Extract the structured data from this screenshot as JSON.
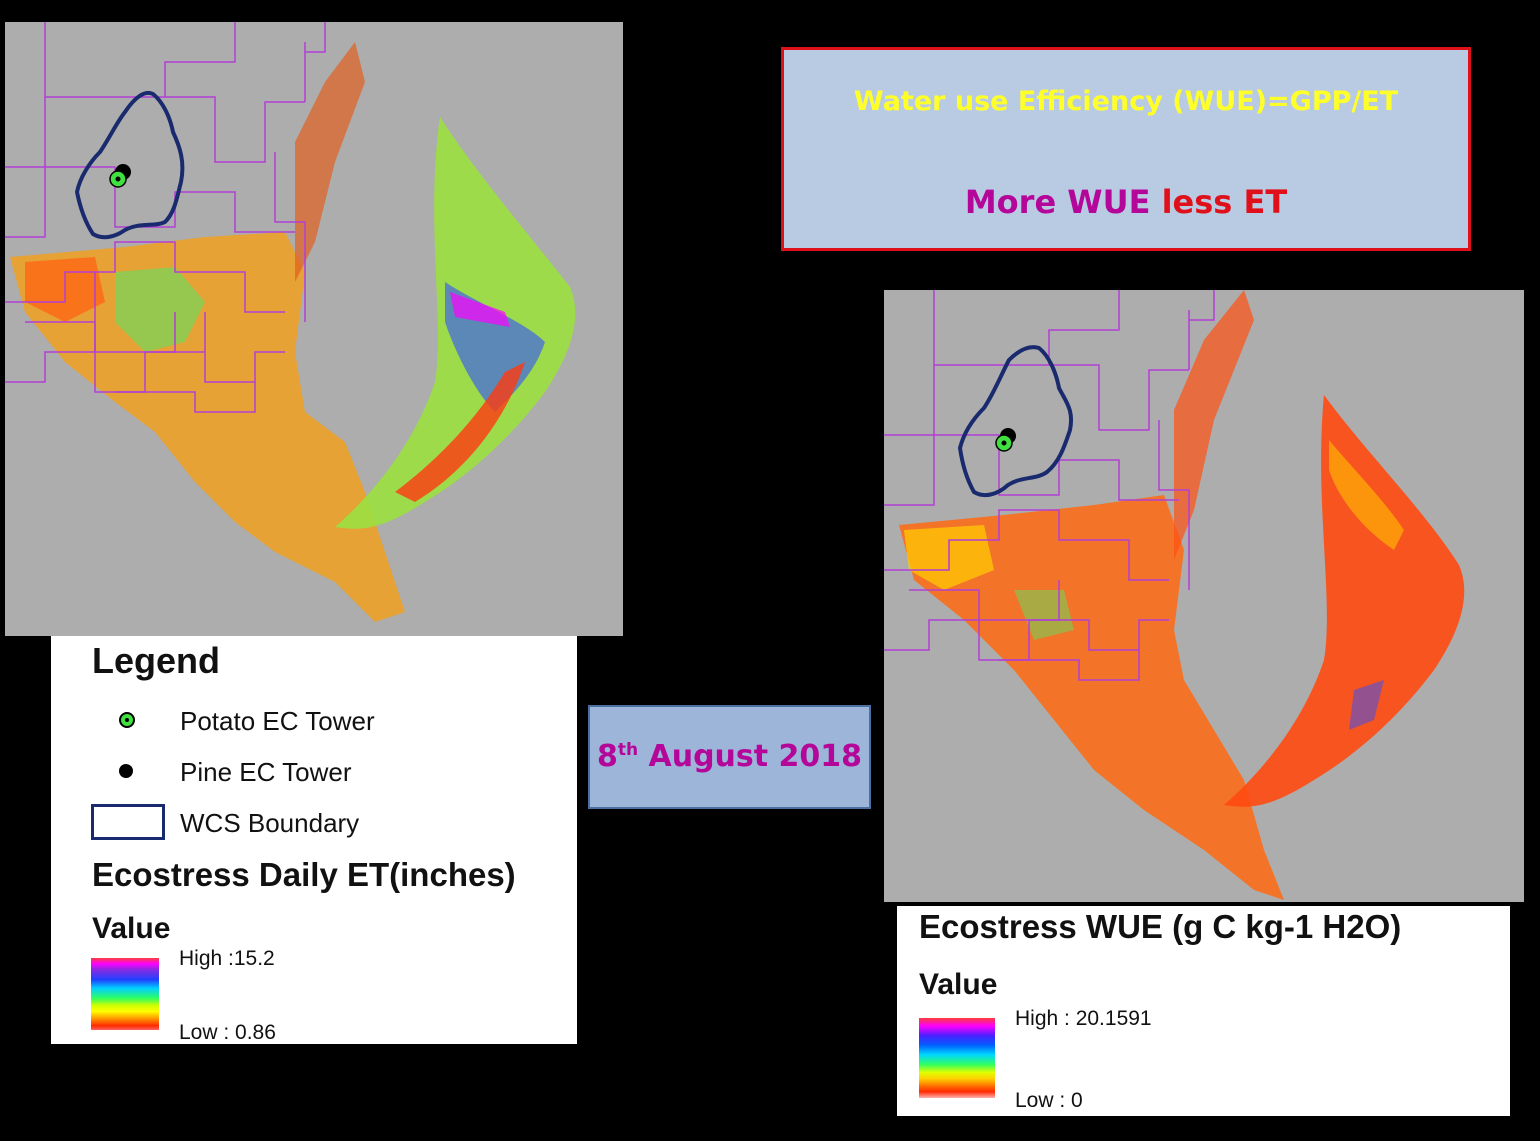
{
  "info_box": {
    "line1": "Water use Efficiency (WUE)=GPP/ET",
    "line2_a": "More WUE ",
    "line2_b": "less ET"
  },
  "date_box": {
    "day": "8",
    "suffix": "th",
    "rest": " August 2018"
  },
  "legend_et": {
    "title": "Legend",
    "items": [
      {
        "label": "Potato EC Tower",
        "icon": "green-target-dot-icon"
      },
      {
        "label": "Pine EC Tower",
        "icon": "black-dot-icon"
      },
      {
        "label": "WCS Boundary",
        "icon": "navy-outline-box-icon"
      }
    ],
    "layer_title": "Ecostress Daily ET(inches)",
    "value_label": "Value",
    "high": "High :15.2",
    "low": "Low : 0.86"
  },
  "legend_wue": {
    "layer_title": "Ecostress WUE (g C kg-1 H2O)",
    "value_label": "Value",
    "high": "High : 20.1591",
    "low": "Low : 0"
  },
  "colors": {
    "background": "#000000",
    "map_nodata": "#adadad",
    "county_lines": "#b23fd6",
    "wcs_boundary": "#1a2a6e",
    "potato_tower": "#40e040",
    "pine_tower": "#000000",
    "title_yellow": "#ffff2a",
    "magenta": "#b5069a",
    "red": "#e0101a"
  }
}
